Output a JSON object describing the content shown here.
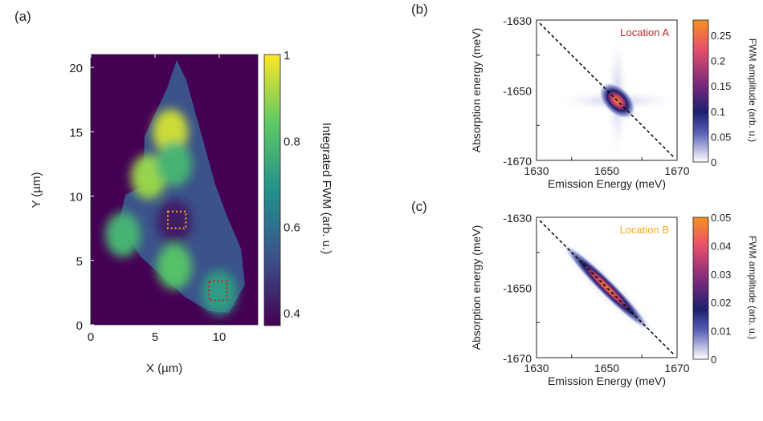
{
  "chart_data": [
    {
      "panel": "(a)",
      "type": "heatmap",
      "xlabel": "X (µm)",
      "ylabel": "Y (µm)",
      "xlim": [
        0,
        13
      ],
      "ylim": [
        0,
        21
      ],
      "xticks": [
        "0",
        "5",
        "10"
      ],
      "yticks": [
        "0",
        "5",
        "10",
        "15",
        "20"
      ],
      "colorbar": {
        "label": "Integrated FWM (arb. u.)",
        "ticks": [
          "0.4",
          "0.6",
          "0.8",
          "1"
        ],
        "range": [
          0.37,
          1
        ],
        "colormap": "viridis"
      },
      "blobs": [
        {
          "x": 6.2,
          "y": 15,
          "value": 0.95
        },
        {
          "x": 4.5,
          "y": 11.5,
          "value": 0.9
        },
        {
          "x": 6.5,
          "y": 12.5,
          "value": 0.78
        },
        {
          "x": 2.5,
          "y": 7,
          "value": 0.78
        },
        {
          "x": 6.5,
          "y": 4.5,
          "value": 0.82
        },
        {
          "x": 10,
          "y": 2.5,
          "value": 0.72
        },
        {
          "x": 6.5,
          "y": 8,
          "value": 0.42
        }
      ],
      "regions": [
        {
          "name": "Location B",
          "x": [
            6,
            7.4
          ],
          "y": [
            7.5,
            8.8
          ],
          "color": "#f5a623"
        },
        {
          "name": "Location A",
          "x": [
            9.2,
            10.6
          ],
          "y": [
            1.9,
            3.4
          ],
          "color": "#d0202a"
        }
      ]
    },
    {
      "panel": "(b)",
      "type": "heatmap",
      "title": "Location A",
      "title_color": "#c1272d",
      "xlabel": "Emission Energy (meV)",
      "ylabel": "Absorption energy (meV)",
      "xlim": [
        1630,
        1670
      ],
      "ylim": [
        -1670,
        -1630
      ],
      "xticks": [
        "1630",
        "1650",
        "1670"
      ],
      "yticks": [
        "-1630",
        "-1650",
        "-1670"
      ],
      "peak": {
        "x": 1653,
        "y": -1653,
        "value": 0.28
      },
      "colorbar": {
        "label": "FWM amplitude (arb. u.)",
        "ticks": [
          "0",
          "0.05",
          "0.1",
          "0.15",
          "0.2",
          "0.25"
        ],
        "range": [
          0,
          0.28
        ]
      }
    },
    {
      "panel": "(c)",
      "type": "heatmap",
      "title": "Location B",
      "title_color": "#f7a823",
      "xlabel": "Emission Energy (meV)",
      "ylabel": "Absorption energy (meV)",
      "xlim": [
        1630,
        1670
      ],
      "ylim": [
        -1670,
        -1630
      ],
      "xticks": [
        "1630",
        "1650",
        "1670"
      ],
      "yticks": [
        "-1630",
        "-1650",
        "-1670"
      ],
      "peak": {
        "x": 1650,
        "y": -1650,
        "value": 0.05
      },
      "colorbar": {
        "label": "FWM amplitude (arb. u.)",
        "ticks": [
          "0",
          "0.01",
          "0.02",
          "0.03",
          "0.04",
          "0.05"
        ],
        "range": [
          0,
          0.05
        ]
      }
    }
  ]
}
